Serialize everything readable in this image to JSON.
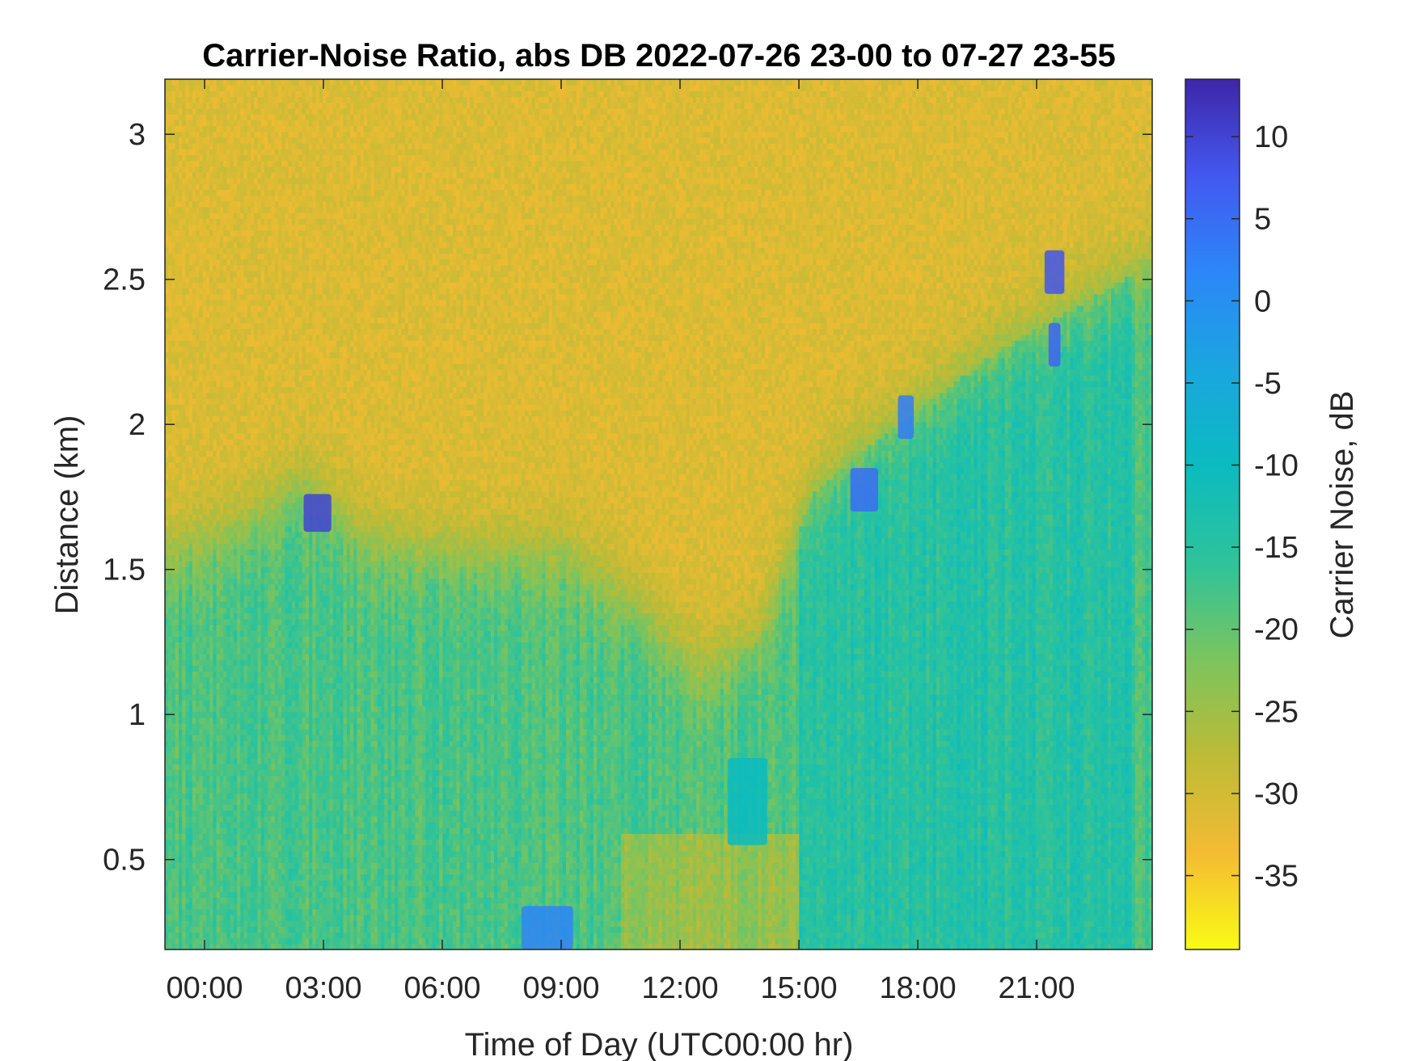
{
  "chart_data": {
    "type": "heatmap",
    "title": "Carrier-Noise Ratio, abs DB 2022-07-26 23-00 to 07-27 23-55",
    "xlabel": "Time of Day (UTC00:00 hr)",
    "ylabel": "Distance (km)",
    "x_ticks": [
      "00:00",
      "03:00",
      "06:00",
      "09:00",
      "12:00",
      "15:00",
      "18:00",
      "21:00"
    ],
    "x_tick_values": [
      0,
      3,
      6,
      9,
      12,
      15,
      18,
      21
    ],
    "xlim": [
      -1.0,
      23.917
    ],
    "y_ticks": [
      "0.5",
      "1",
      "1.5",
      "2",
      "2.5",
      "3"
    ],
    "y_tick_values": [
      0.5,
      1.0,
      1.5,
      2.0,
      2.5,
      3.0
    ],
    "ylim": [
      0.19,
      3.19
    ],
    "colorbar": {
      "label": "Carrier Noise, dB",
      "ticks": [
        "10",
        "5",
        "0",
        "-5",
        "-10",
        "-15",
        "-20",
        "-25",
        "-30",
        "-35"
      ],
      "tick_values": [
        10,
        5,
        0,
        -5,
        -10,
        -15,
        -20,
        -25,
        -30,
        -35
      ],
      "range": [
        -39.5,
        13.5
      ],
      "colormap": "parula-reversed",
      "colors_high_to_low": [
        "#3e26a8",
        "#4358f0",
        "#2c87f8",
        "#1aa6df",
        "#0bbbc0",
        "#2ec39a",
        "#7bc45e",
        "#bdbb36",
        "#f4bb33",
        "#f9fb14"
      ]
    },
    "rows": [
      {
        "distance": [
          0.19,
          1.6
        ],
        "value": -18,
        "description_free": true
      },
      {
        "distance": [
          1.6,
          3.19
        ],
        "value": -31
      }
    ],
    "features": [
      {
        "time": [
          2.5,
          3.2
        ],
        "distance": [
          1.63,
          1.76
        ],
        "value": 10
      },
      {
        "time": [
          8.0,
          9.3
        ],
        "distance": [
          0.19,
          0.34
        ],
        "value": 2
      },
      {
        "time": [
          13.2,
          14.2
        ],
        "distance": [
          0.55,
          0.85
        ],
        "value": -10
      },
      {
        "time": [
          16.3,
          17.0
        ],
        "distance": [
          1.7,
          1.85
        ],
        "value": 5
      },
      {
        "time": [
          17.5,
          17.9
        ],
        "distance": [
          1.95,
          2.1
        ],
        "value": 3
      },
      {
        "time": [
          21.2,
          21.7
        ],
        "distance": [
          2.45,
          2.6
        ],
        "value": 8
      },
      {
        "time": [
          21.3,
          21.6
        ],
        "distance": [
          2.2,
          2.35
        ],
        "value": 6
      }
    ],
    "boundary_layer_top_km": [
      {
        "t": -1.0,
        "h": 1.55
      },
      {
        "t": 1.0,
        "h": 1.65
      },
      {
        "t": 2.5,
        "h": 1.8
      },
      {
        "t": 4.0,
        "h": 1.6
      },
      {
        "t": 6.0,
        "h": 1.55
      },
      {
        "t": 9.0,
        "h": 1.55
      },
      {
        "t": 11.0,
        "h": 1.35
      },
      {
        "t": 12.5,
        "h": 1.15
      },
      {
        "t": 14.0,
        "h": 1.25
      },
      {
        "t": 15.3,
        "h": 1.75
      },
      {
        "t": 16.5,
        "h": 1.9
      },
      {
        "t": 18.0,
        "h": 2.05
      },
      {
        "t": 20.0,
        "h": 2.25
      },
      {
        "t": 23.917,
        "h": 2.55
      }
    ],
    "grid": false
  }
}
